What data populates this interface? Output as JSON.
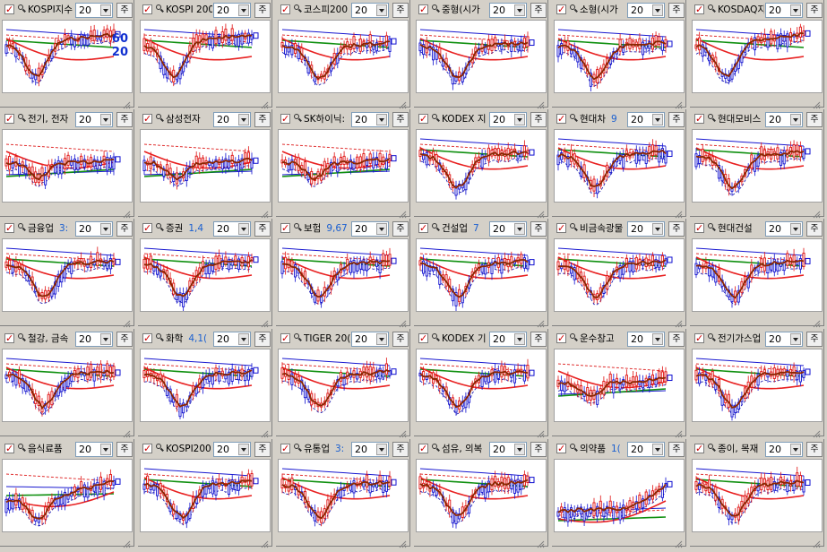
{
  "period_value": "20",
  "period_button_label": "주",
  "overlay_labels": [
    "60",
    "20"
  ],
  "colors": {
    "candle_up": "#e01010",
    "candle_down": "#1010d0",
    "ma_short": "#8b2500",
    "ma_mid": "#e82020",
    "ma_long": "#109010",
    "ma_xlong": "#1a1ad0",
    "dash_red": "#e03030",
    "dash_blue": "#2020b0"
  },
  "panels": [
    {
      "name": "KOSPI지수",
      "value": "",
      "shape": "v"
    },
    {
      "name": "KOSPI 200",
      "value": "",
      "shape": "v"
    },
    {
      "name": "코스피200",
      "value": "",
      "shape": "v2"
    },
    {
      "name": "중형(시가",
      "value": "",
      "shape": "v2"
    },
    {
      "name": "소형(시가",
      "value": "",
      "shape": "v2"
    },
    {
      "name": "KOSDAQ지",
      "value": "",
      "shape": "v"
    },
    {
      "name": "전기, 전자",
      "value": "",
      "shape": "flat"
    },
    {
      "name": "삼성전자",
      "value": "",
      "shape": "flat"
    },
    {
      "name": "SK하이닉:",
      "value": "",
      "shape": "flat"
    },
    {
      "name": "KODEX 지",
      "value": "",
      "shape": "v2"
    },
    {
      "name": "현대차",
      "value": "9",
      "shape": "v2"
    },
    {
      "name": "현대모비스",
      "value": "",
      "shape": "v2"
    },
    {
      "name": "금융업",
      "value": "3:",
      "shape": "v2"
    },
    {
      "name": "증권",
      "value": "1,4",
      "shape": "v2"
    },
    {
      "name": "보험",
      "value": "9,67",
      "shape": "v2"
    },
    {
      "name": "건설업",
      "value": "7",
      "shape": "v2"
    },
    {
      "name": "비금속광물",
      "value": "",
      "shape": "v2"
    },
    {
      "name": "현대건설",
      "value": "",
      "shape": "v2"
    },
    {
      "name": "철강, 금속",
      "value": "",
      "shape": "v2"
    },
    {
      "name": "화학",
      "value": "4,1(",
      "shape": "v2"
    },
    {
      "name": "TIGER 20(",
      "value": "",
      "shape": "v2"
    },
    {
      "name": "KODEX 기",
      "value": "",
      "shape": "v2"
    },
    {
      "name": "운수창고",
      "value": "",
      "shape": "flat"
    },
    {
      "name": "전기가스업",
      "value": "",
      "shape": "v2"
    },
    {
      "name": "음식료품",
      "value": "",
      "shape": "rise"
    },
    {
      "name": "KOSPI200",
      "value": "",
      "shape": "v2"
    },
    {
      "name": "유통업",
      "value": "3:",
      "shape": "v2"
    },
    {
      "name": "섬유, 의복",
      "value": "",
      "shape": "v2"
    },
    {
      "name": "의약품",
      "value": "1(",
      "shape": "up"
    },
    {
      "name": "종이, 목재",
      "value": "",
      "shape": "v2"
    }
  ]
}
